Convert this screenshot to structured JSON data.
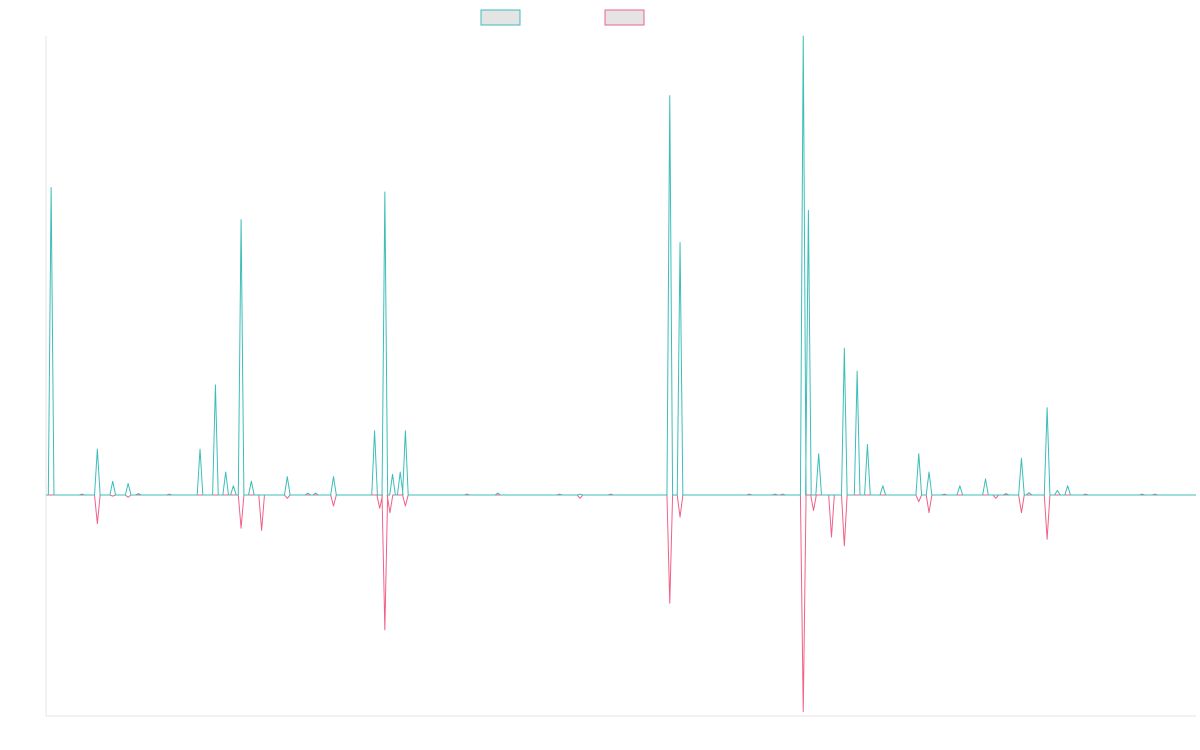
{
  "colors": {
    "series_a": "#3dbdb9",
    "series_b": "#f06188",
    "legend_fill": "#e4e4e4",
    "axis": "#e6e6e6"
  },
  "chart_data": {
    "type": "line",
    "title": "",
    "xlabel": "",
    "ylabel": "",
    "ylim": [
      -1.0,
      1.0
    ],
    "grid": false,
    "x_tick_labels_shown": false,
    "y_tick_labels_shown": false,
    "legend": {
      "placement": "top-center",
      "labels_shown": false
    },
    "series": [
      {
        "color": "#3dbdb9",
        "direction": "up",
        "points": [
          [
            1,
            0.67
          ],
          [
            7,
            0.002
          ],
          [
            10,
            0.1
          ],
          [
            13,
            0.03
          ],
          [
            16,
            0.025
          ],
          [
            18,
            0.003
          ],
          [
            24,
            0.002
          ],
          [
            30,
            0.1
          ],
          [
            33,
            0.24
          ],
          [
            35,
            0.05
          ],
          [
            36.5,
            0.02
          ],
          [
            38,
            0.6
          ],
          [
            40,
            0.03
          ],
          [
            47,
            0.04
          ],
          [
            51,
            0.004
          ],
          [
            52.5,
            0.004
          ],
          [
            56,
            0.04
          ],
          [
            64,
            0.14
          ],
          [
            66,
            0.66
          ],
          [
            67.5,
            0.045
          ],
          [
            69,
            0.05
          ],
          [
            70,
            0.14
          ],
          [
            82,
            0.002
          ],
          [
            88,
            0.004
          ],
          [
            100,
            0.002
          ],
          [
            104,
            0.002
          ],
          [
            110,
            0.002
          ],
          [
            121.5,
            0.87
          ],
          [
            123.5,
            0.55
          ],
          [
            137,
            0.002
          ],
          [
            142,
            0.002
          ],
          [
            143.5,
            0.002
          ],
          [
            147.5,
            1.0
          ],
          [
            148.5,
            0.62
          ],
          [
            150.5,
            0.09
          ],
          [
            155.5,
            0.32
          ],
          [
            158,
            0.27
          ],
          [
            160,
            0.11
          ],
          [
            163,
            0.02
          ],
          [
            170,
            0.09
          ],
          [
            172,
            0.05
          ],
          [
            175,
            0.002
          ],
          [
            178,
            0.02
          ],
          [
            183,
            0.035
          ],
          [
            187,
            0.003
          ],
          [
            190,
            0.08
          ],
          [
            191.5,
            0.005
          ],
          [
            195,
            0.19
          ],
          [
            197,
            0.01
          ],
          [
            199,
            0.02
          ],
          [
            202.5,
            0.002
          ],
          [
            213.5,
            0.002
          ],
          [
            216,
            0.002
          ]
        ]
      },
      {
        "color": "#f06188",
        "direction": "down",
        "points": [
          [
            10,
            -0.13
          ],
          [
            13,
            -0.005
          ],
          [
            16,
            -0.01
          ],
          [
            38,
            -0.15
          ],
          [
            42,
            -0.16
          ],
          [
            47,
            -0.015
          ],
          [
            56,
            -0.05
          ],
          [
            65,
            -0.06
          ],
          [
            66,
            -0.61
          ],
          [
            67,
            -0.08
          ],
          [
            70,
            -0.05
          ],
          [
            104,
            -0.015
          ],
          [
            121.5,
            -0.49
          ],
          [
            123.5,
            -0.1
          ],
          [
            147.5,
            -0.98
          ],
          [
            149.5,
            -0.07
          ],
          [
            153,
            -0.19
          ],
          [
            155.5,
            -0.23
          ],
          [
            170,
            -0.03
          ],
          [
            172,
            -0.08
          ],
          [
            185,
            -0.015
          ],
          [
            190,
            -0.08
          ],
          [
            195,
            -0.2
          ]
        ]
      }
    ]
  }
}
